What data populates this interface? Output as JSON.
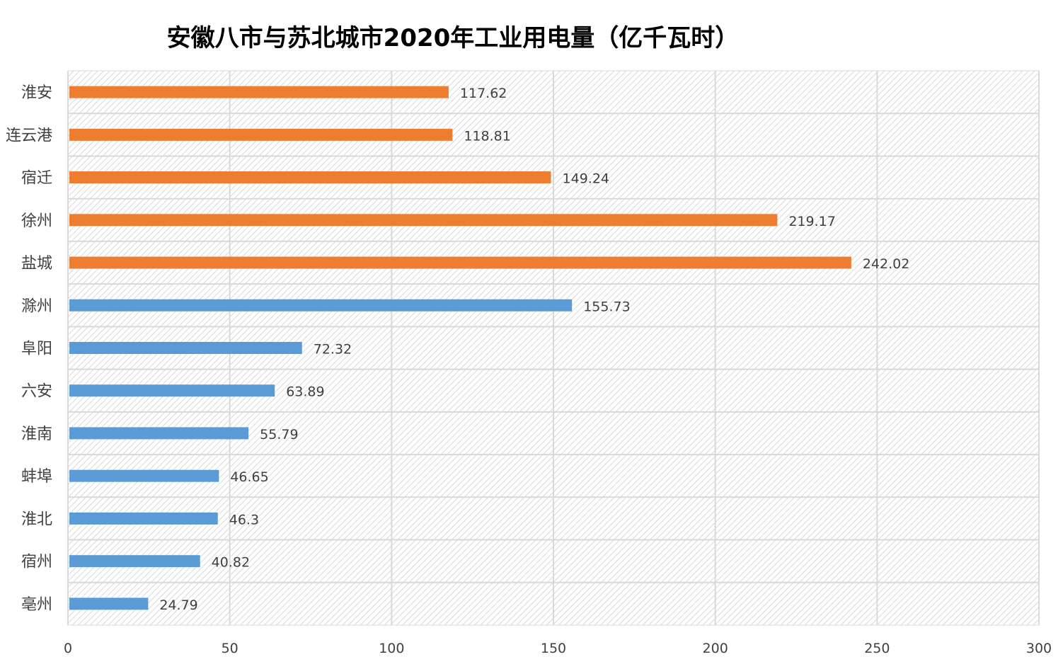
{
  "chart_data": {
    "type": "bar",
    "orientation": "horizontal",
    "title": "安徽八市与苏北城市2020年工业用电量（亿千瓦时）",
    "categories": [
      "淮安",
      "连云港",
      "宿迁",
      "徐州",
      "盐城",
      "滁州",
      "阜阳",
      "六安",
      "淮南",
      "蚌埠",
      "淮北",
      "宿州",
      "亳州"
    ],
    "values": [
      117.62,
      118.81,
      149.24,
      219.17,
      242.02,
      155.73,
      72.32,
      63.89,
      55.79,
      46.65,
      46.3,
      40.82,
      24.79
    ],
    "value_labels": [
      "117.62",
      "118.81",
      "149.24",
      "219.17",
      "242.02",
      "155.73",
      "72.32",
      "63.89",
      "55.79",
      "46.65",
      "46.3",
      "40.82",
      "24.79"
    ],
    "groups": [
      "苏北",
      "苏北",
      "苏北",
      "苏北",
      "苏北",
      "安徽",
      "安徽",
      "安徽",
      "安徽",
      "安徽",
      "安徽",
      "安徽",
      "安徽"
    ],
    "group_colors": {
      "苏北": "#ED7D31",
      "安徽": "#5B9BD5"
    },
    "xlim": [
      0,
      300
    ],
    "xticks": [
      0,
      50,
      100,
      150,
      200,
      250,
      300
    ],
    "xlabel": "",
    "ylabel": "",
    "grid": true,
    "legend": "none"
  }
}
